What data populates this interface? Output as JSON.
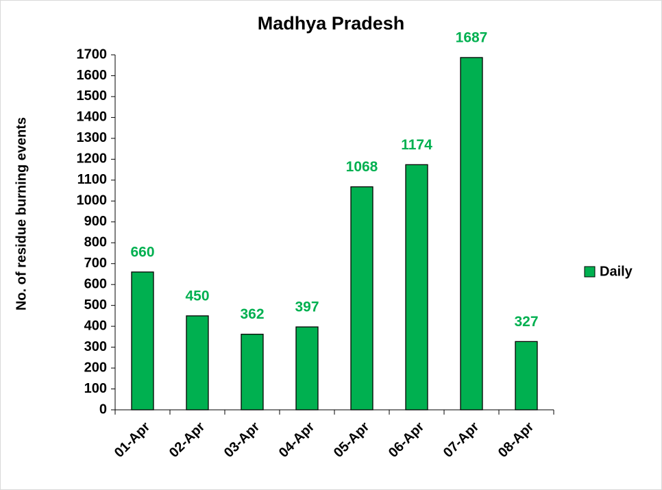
{
  "chart_data": {
    "type": "bar",
    "title": "Madhya Pradesh",
    "y_label": "No. of residue burning events",
    "categories": [
      "01-Apr",
      "02-Apr",
      "03-Apr",
      "04-Apr",
      "05-Apr",
      "06-Apr",
      "07-Apr",
      "08-Apr"
    ],
    "series": [
      {
        "name": "Daily",
        "color": "#00b050",
        "values": [
          660,
          450,
          362,
          397,
          1068,
          1174,
          1687,
          327
        ]
      }
    ],
    "ylim": [
      0,
      1700
    ],
    "yticks": [
      0,
      100,
      200,
      300,
      400,
      500,
      600,
      700,
      800,
      900,
      1000,
      1100,
      1200,
      1300,
      1400,
      1500,
      1600,
      1700
    ],
    "grid": false,
    "legend": "right",
    "data_labels": true
  }
}
